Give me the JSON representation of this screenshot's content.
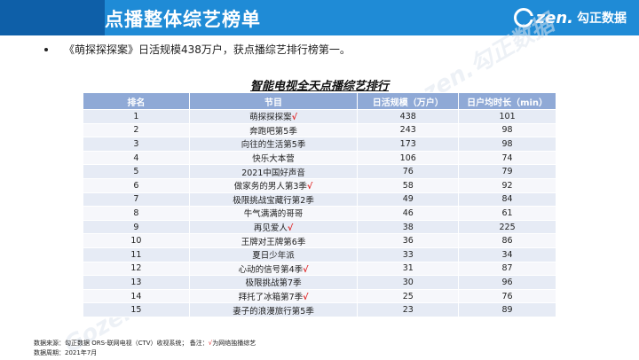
{
  "header": {
    "title": "点播整体综艺榜单",
    "logo_text": "zen.",
    "logo_cn": "勾正数据"
  },
  "bullet": "《萌探探探案》日活规模438万户，获点播综艺排行榜第一。",
  "table": {
    "title": "智能电视全天点播综艺排行",
    "headers": [
      "排名",
      "节目",
      "日活规模（万户）",
      "日户均时长（min）"
    ],
    "rows": [
      {
        "rank": "1",
        "name": "萌探探探案",
        "mark": "√",
        "dau": "438",
        "dur": "101"
      },
      {
        "rank": "2",
        "name": "奔跑吧第5季",
        "mark": "",
        "dau": "243",
        "dur": "98"
      },
      {
        "rank": "3",
        "name": "向往的生活第5季",
        "mark": "",
        "dau": "173",
        "dur": "98"
      },
      {
        "rank": "4",
        "name": "快乐大本营",
        "mark": "",
        "dau": "106",
        "dur": "74"
      },
      {
        "rank": "5",
        "name": "2021中国好声音",
        "mark": "",
        "dau": "76",
        "dur": "79"
      },
      {
        "rank": "6",
        "name": "做家务的男人第3季",
        "mark": "√",
        "dau": "58",
        "dur": "92"
      },
      {
        "rank": "7",
        "name": "极限挑战宝藏行第2季",
        "mark": "",
        "dau": "49",
        "dur": "84"
      },
      {
        "rank": "8",
        "name": "牛气满满的哥哥",
        "mark": "",
        "dau": "46",
        "dur": "61"
      },
      {
        "rank": "9",
        "name": "再见爱人",
        "mark": "√",
        "dau": "38",
        "dur": "225"
      },
      {
        "rank": "10",
        "name": "王牌对王牌第6季",
        "mark": "",
        "dau": "36",
        "dur": "86"
      },
      {
        "rank": "11",
        "name": "夏日少年派",
        "mark": "",
        "dau": "33",
        "dur": "34"
      },
      {
        "rank": "12",
        "name": "心动的信号第4季",
        "mark": "√",
        "dau": "31",
        "dur": "87"
      },
      {
        "rank": "13",
        "name": "极限挑战第7季",
        "mark": "",
        "dau": "30",
        "dur": "96"
      },
      {
        "rank": "14",
        "name": "拜托了冰箱第7季",
        "mark": "√",
        "dau": "25",
        "dur": "76"
      },
      {
        "rank": "15",
        "name": "妻子的浪漫旅行第5季",
        "mark": "",
        "dau": "23",
        "dur": "89"
      }
    ]
  },
  "footer": {
    "source_prefix": "数据来源：勾正数据 ORS-联网电视（CTV）收视系统；  备注：",
    "source_mark": "√",
    "source_suffix": "为网络独播综艺",
    "period": "数据周期：2021年7月"
  },
  "watermark": "Gozen.勾正数据",
  "colors": {
    "header_blue": "#1f8bd6",
    "header_dark": "#0e5fa8",
    "table_head": "#8fa9d6",
    "mark_red": "#e02424"
  }
}
